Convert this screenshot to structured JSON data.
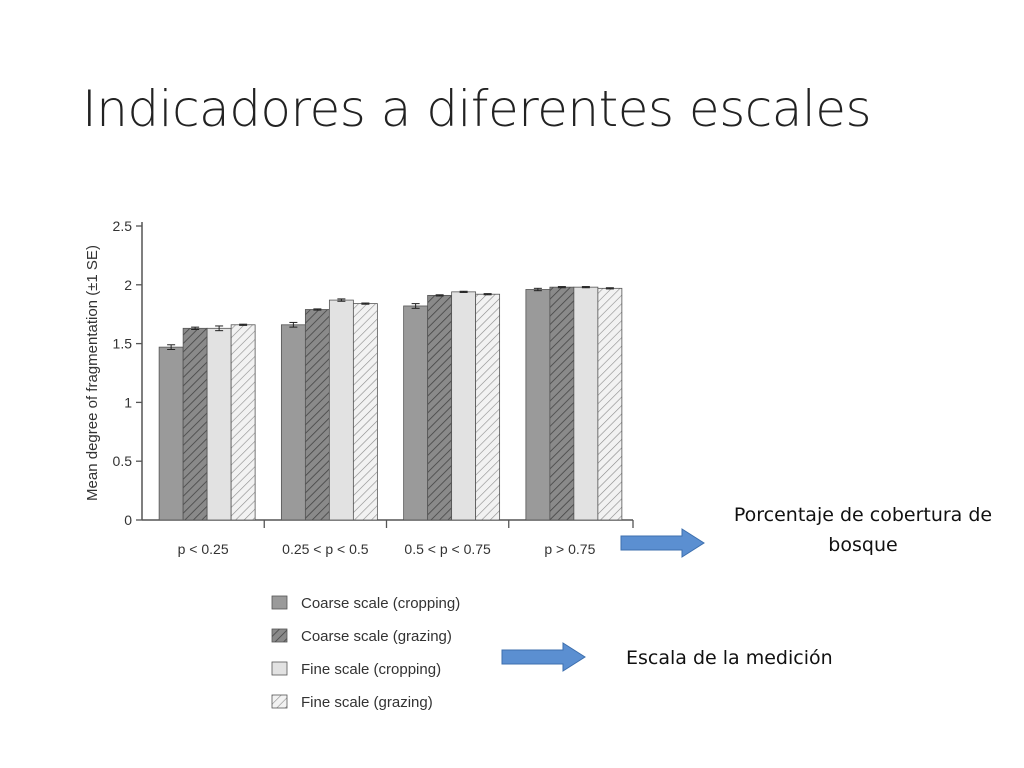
{
  "slide": {
    "title": "Indicadores a diferentes escales",
    "annotation_cover": "Porcentaje de cobertura de bosque",
    "annotation_scale": "Escala de la medición"
  },
  "chart_data": {
    "type": "bar",
    "ylabel": "Mean degree of fragmentation (±1 SE)",
    "xlabel": "",
    "ylim": [
      0,
      2.5
    ],
    "yticks": [
      "0",
      "0.5",
      "1",
      "1.5",
      "2",
      "2.5"
    ],
    "grid": false,
    "legend_position": "bottom",
    "categories": [
      "p < 0.25",
      "0.25 < p < 0.5",
      "0.5 < p < 0.75",
      "p > 0.75"
    ],
    "series": [
      {
        "name": "Coarse scale (cropping)",
        "values": [
          1.47,
          1.66,
          1.82,
          1.96
        ],
        "errors": [
          0.02,
          0.02,
          0.02,
          0.01
        ],
        "fill": "#9a9a9a",
        "hatch": false
      },
      {
        "name": "Coarse scale (grazing)",
        "values": [
          1.63,
          1.79,
          1.91,
          1.98
        ],
        "errors": [
          0.01,
          0.005,
          0.005,
          0.005
        ],
        "fill": "#8a8a8a",
        "hatch": true
      },
      {
        "name": "Fine scale (cropping)",
        "values": [
          1.63,
          1.87,
          1.94,
          1.98
        ],
        "errors": [
          0.02,
          0.01,
          0.005,
          0.005
        ],
        "fill": "#e2e2e2",
        "hatch": false
      },
      {
        "name": "Fine scale (grazing)",
        "values": [
          1.66,
          1.84,
          1.92,
          1.97
        ],
        "errors": [
          0.005,
          0.005,
          0.005,
          0.005
        ],
        "fill": "#ececec",
        "hatch": true
      }
    ]
  },
  "colors": {
    "arrow_fill": "#5b8fd1",
    "arrow_stroke": "#3d6fae",
    "axis": "#555555"
  }
}
